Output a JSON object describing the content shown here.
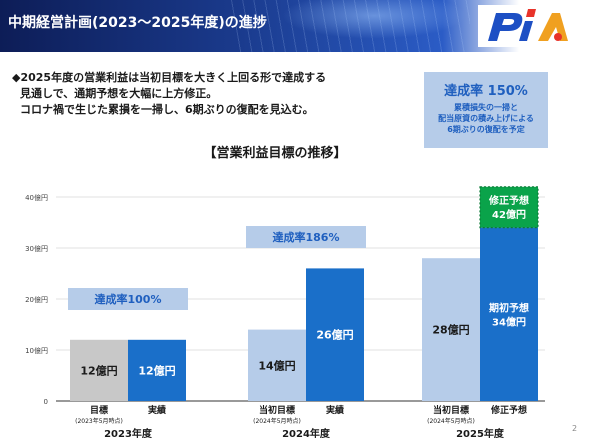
{
  "header": {
    "title": "中期経営計画(2023～2025年度)の進捗",
    "accent": "#0d1d57"
  },
  "logo": {
    "text": "PIA",
    "colors": [
      "#1d4fc4",
      "#e8332a",
      "#f0a020"
    ]
  },
  "summary": {
    "line1": "◆2025年度の営業利益は当初目標を大きく上回る形で達成する",
    "line2": "見通しで、通期予想を大幅に上方修正。",
    "line3": "コロナ禍で生じた累損を一掃し、6期ぶりの復配を見込む。"
  },
  "callout_2025": {
    "headline": "達成率 150%",
    "note1": "累積損失の一掃と",
    "note2": "配当原資の積み上げによる",
    "note3": "6期ぶりの復配を予定"
  },
  "chart_data": {
    "type": "bar",
    "title": "【営業利益目標の推移】",
    "ylim": [
      0,
      40
    ],
    "y_ticks": [
      {
        "value": 0,
        "label": "0"
      },
      {
        "value": 10,
        "label": "10億円"
      },
      {
        "value": 20,
        "label": "20億円"
      },
      {
        "value": 30,
        "label": "30億円"
      },
      {
        "value": 40,
        "label": "40億円"
      }
    ],
    "groups": [
      {
        "year": "2023年度",
        "achievement": "達成率100%",
        "bars": [
          {
            "label": "目標",
            "sublabel": "(2023年5月時点)",
            "value": 12,
            "value_label": "12億円",
            "color": "#c8c8c8",
            "text_color": "#1a1a1a"
          },
          {
            "label": "実績",
            "sublabel": "",
            "value": 12,
            "value_label": "12億円",
            "color": "#1a6fc9",
            "text_color": "#ffffff"
          }
        ]
      },
      {
        "year": "2024年度",
        "achievement": "達成率186%",
        "bars": [
          {
            "label": "当初目標",
            "sublabel": "(2024年5月時点)",
            "value": 14,
            "value_label": "14億円",
            "color": "#b6cce9",
            "text_color": "#1a1a1a"
          },
          {
            "label": "実績",
            "sublabel": "",
            "value": 26,
            "value_label": "26億円",
            "color": "#1a6fc9",
            "text_color": "#ffffff"
          }
        ]
      },
      {
        "year": "2025年度",
        "achievement": "",
        "bars": [
          {
            "label": "当初目標",
            "sublabel": "(2024年5月時点)",
            "value": 28,
            "value_label": "28億円",
            "color": "#b6cce9",
            "text_color": "#1a1a1a"
          },
          {
            "label": "修正予想",
            "sublabel": "",
            "value": 42,
            "value_label": "",
            "segments": [
              {
                "value": 34,
                "name": "期初予想",
                "value_label": "34億円",
                "color": "#1a6fc9",
                "text_color": "#ffffff"
              },
              {
                "value": 8,
                "name": "修正予想",
                "value_label": "42億円",
                "color": "#0aa34a",
                "text_color": "#ffffff"
              }
            ]
          }
        ]
      }
    ],
    "achievement_box_color": "#b6cce9",
    "achievement_text_color": "#1f5fbf"
  },
  "page_number": "2"
}
